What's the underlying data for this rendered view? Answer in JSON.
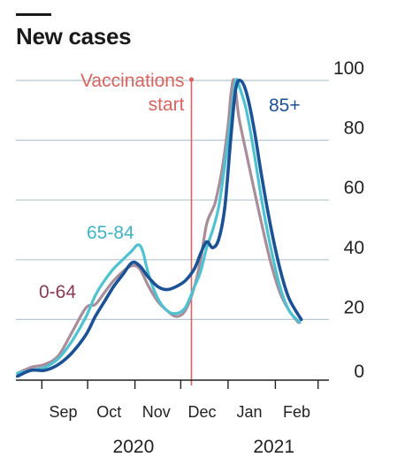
{
  "chart_data": {
    "type": "line",
    "title": "New cases",
    "xlabel": "",
    "ylabel": "",
    "ylim": [
      0,
      100
    ],
    "yticks": [
      0,
      20,
      40,
      60,
      80,
      100
    ],
    "grid": true,
    "y_axis_side": "right",
    "x_range": [
      "2020-08-15",
      "2021-02-28"
    ],
    "x_ticks": [
      "2020-09-01",
      "2020-10-01",
      "2020-11-01",
      "2020-12-01",
      "2021-01-01",
      "2021-02-01",
      "2021-03-01"
    ],
    "month_labels": [
      {
        "label": "Sep",
        "date": "2020-09-15"
      },
      {
        "label": "Oct",
        "date": "2020-10-15"
      },
      {
        "label": "Nov",
        "date": "2020-11-15"
      },
      {
        "label": "Dec",
        "date": "2020-12-15"
      },
      {
        "label": "Jan",
        "date": "2021-01-15"
      },
      {
        "label": "Feb",
        "date": "2021-02-15"
      }
    ],
    "year_labels": [
      {
        "label": "2020",
        "date": "2020-10-31"
      },
      {
        "label": "2021",
        "date": "2021-01-31"
      }
    ],
    "annotation": {
      "lines": [
        "Vaccinations",
        "start"
      ],
      "date": "2020-12-08",
      "color": "#d9635e"
    },
    "series": [
      {
        "name": "0-64",
        "color": "#a78e9a",
        "label_color": "#8b3a56",
        "points": [
          [
            "2020-08-16",
            2
          ],
          [
            "2020-08-25",
            4
          ],
          [
            "2020-09-03",
            5
          ],
          [
            "2020-09-12",
            8
          ],
          [
            "2020-09-21",
            16
          ],
          [
            "2020-09-30",
            24
          ],
          [
            "2020-10-06",
            25
          ],
          [
            "2020-10-12",
            29
          ],
          [
            "2020-10-18",
            33
          ],
          [
            "2020-10-24",
            36
          ],
          [
            "2020-10-30",
            38
          ],
          [
            "2020-11-04",
            37
          ],
          [
            "2020-11-10",
            31
          ],
          [
            "2020-11-16",
            26
          ],
          [
            "2020-11-22",
            23
          ],
          [
            "2020-11-28",
            21
          ],
          [
            "2020-12-04",
            23
          ],
          [
            "2020-12-10",
            31
          ],
          [
            "2020-12-14",
            40
          ],
          [
            "2020-12-18",
            52
          ],
          [
            "2020-12-22",
            57
          ],
          [
            "2020-12-24",
            60
          ],
          [
            "2020-12-28",
            70
          ],
          [
            "2021-01-01",
            85
          ],
          [
            "2021-01-03",
            96
          ],
          [
            "2021-01-05",
            100
          ],
          [
            "2021-01-08",
            88
          ],
          [
            "2021-01-12",
            78
          ],
          [
            "2021-01-17",
            66
          ],
          [
            "2021-01-23",
            52
          ],
          [
            "2021-01-29",
            39
          ],
          [
            "2021-02-04",
            29
          ],
          [
            "2021-02-10",
            23
          ],
          [
            "2021-02-16",
            19
          ]
        ]
      },
      {
        "name": "65-84",
        "color": "#4fc2d2",
        "label_color": "#3fb4c6",
        "points": [
          [
            "2020-08-16",
            2
          ],
          [
            "2020-08-25",
            3
          ],
          [
            "2020-09-03",
            4
          ],
          [
            "2020-09-12",
            7
          ],
          [
            "2020-09-21",
            13
          ],
          [
            "2020-09-30",
            21
          ],
          [
            "2020-10-06",
            28
          ],
          [
            "2020-10-12",
            33
          ],
          [
            "2020-10-18",
            37
          ],
          [
            "2020-10-24",
            40
          ],
          [
            "2020-10-30",
            43
          ],
          [
            "2020-11-03",
            45
          ],
          [
            "2020-11-06",
            43
          ],
          [
            "2020-11-10",
            35
          ],
          [
            "2020-11-16",
            27
          ],
          [
            "2020-11-22",
            23
          ],
          [
            "2020-11-28",
            22
          ],
          [
            "2020-12-04",
            24
          ],
          [
            "2020-12-10",
            31
          ],
          [
            "2020-12-14",
            36
          ],
          [
            "2020-12-18",
            44
          ],
          [
            "2020-12-22",
            50
          ],
          [
            "2020-12-26",
            58
          ],
          [
            "2020-12-30",
            72
          ],
          [
            "2021-01-03",
            88
          ],
          [
            "2021-01-06",
            100
          ],
          [
            "2021-01-09",
            97
          ],
          [
            "2021-01-13",
            90
          ],
          [
            "2021-01-18",
            76
          ],
          [
            "2021-01-23",
            60
          ],
          [
            "2021-01-29",
            44
          ],
          [
            "2021-02-04",
            31
          ],
          [
            "2021-02-10",
            23
          ],
          [
            "2021-02-17",
            19
          ]
        ]
      },
      {
        "name": "85+",
        "color": "#1b5296",
        "label_color": "#1b5296",
        "points": [
          [
            "2020-08-16",
            1
          ],
          [
            "2020-08-25",
            3
          ],
          [
            "2020-09-03",
            3
          ],
          [
            "2020-09-12",
            5
          ],
          [
            "2020-09-21",
            9
          ],
          [
            "2020-09-30",
            15
          ],
          [
            "2020-10-06",
            21
          ],
          [
            "2020-10-12",
            26
          ],
          [
            "2020-10-18",
            31
          ],
          [
            "2020-10-24",
            35
          ],
          [
            "2020-10-30",
            39
          ],
          [
            "2020-11-04",
            38
          ],
          [
            "2020-11-10",
            34
          ],
          [
            "2020-11-16",
            31
          ],
          [
            "2020-11-22",
            30
          ],
          [
            "2020-11-28",
            31
          ],
          [
            "2020-12-04",
            33
          ],
          [
            "2020-12-10",
            37
          ],
          [
            "2020-12-14",
            42
          ],
          [
            "2020-12-18",
            46
          ],
          [
            "2020-12-22",
            44
          ],
          [
            "2020-12-26",
            47
          ],
          [
            "2020-12-30",
            58
          ],
          [
            "2021-01-03",
            82
          ],
          [
            "2021-01-06",
            97
          ],
          [
            "2021-01-09",
            100
          ],
          [
            "2021-01-13",
            96
          ],
          [
            "2021-01-18",
            84
          ],
          [
            "2021-01-23",
            68
          ],
          [
            "2021-01-29",
            51
          ],
          [
            "2021-02-04",
            37
          ],
          [
            "2021-02-10",
            27
          ],
          [
            "2021-02-18",
            20
          ]
        ]
      }
    ]
  }
}
